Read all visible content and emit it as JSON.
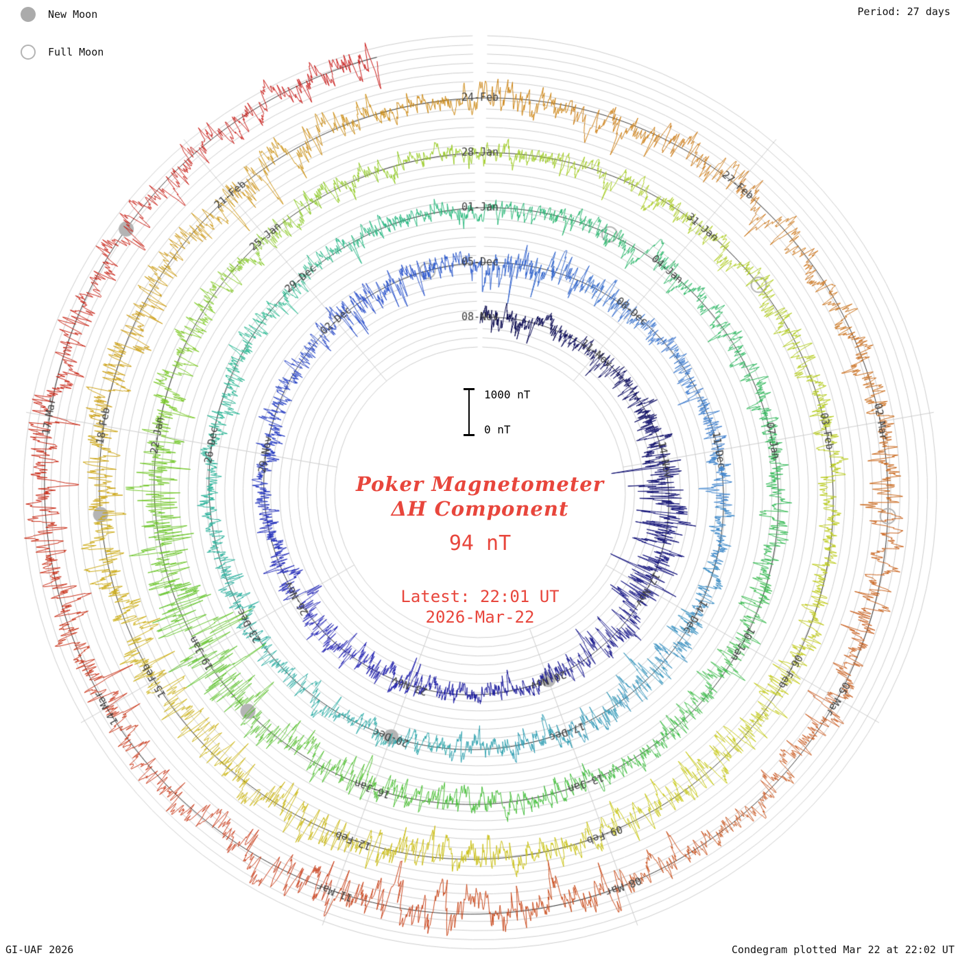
{
  "legend": {
    "new_moon_label": "New Moon",
    "full_moon_label": "Full Moon"
  },
  "header_right": "Period: 27 days",
  "footer_left": "GI-UAF 2026",
  "footer_right": "Condegram plotted Mar 22 at 22:02 UT",
  "scale_bar": {
    "top": "1000 nT",
    "bottom": "0 nT"
  },
  "center_text": {
    "title_line1": "Poker Magnetometer",
    "title_line2": "ΔH Component",
    "current_value": "94 nT",
    "latest_label": "Latest: 22:01 UT",
    "latest_date": "2026-Mar-22"
  },
  "chart_data": {
    "type": "line",
    "variant": "condegram (polar spiral magnetogram, one revolution = 27 days, time runs clockwise from top)",
    "title": "Poker Magnetometer ΔH Component",
    "station": "Poker Magnetometer",
    "component": "ΔH",
    "period_days": 27,
    "days_total": 134,
    "start_label": "08-Nov",
    "end_label": "2026-Mar-22",
    "latest_value_nT": 94,
    "latest_time": "22:01 UT",
    "scale": {
      "bottom_nT": 0,
      "top_nT": 1000
    },
    "tick_labels": [
      {
        "d": 0,
        "t": "08-Nov"
      },
      {
        "d": 3,
        "t": "11-Nov"
      },
      {
        "d": 6,
        "t": "14-Nov"
      },
      {
        "d": 9,
        "t": "17-Nov"
      },
      {
        "d": 12,
        "t": "20-Nov"
      },
      {
        "d": 15,
        "t": "23-Nov"
      },
      {
        "d": 18,
        "t": "26-Nov"
      },
      {
        "d": 21,
        "t": "29-Nov"
      },
      {
        "d": 24,
        "t": "02-Dec"
      },
      {
        "d": 27,
        "t": "05-Dec"
      },
      {
        "d": 30,
        "t": "08-Dec"
      },
      {
        "d": 33,
        "t": "11-Dec"
      },
      {
        "d": 36,
        "t": "14-Dec"
      },
      {
        "d": 39,
        "t": "17-Dec"
      },
      {
        "d": 42,
        "t": "20-Dec"
      },
      {
        "d": 45,
        "t": "23-Dec"
      },
      {
        "d": 48,
        "t": "26-Dec"
      },
      {
        "d": 51,
        "t": "29-Dec"
      },
      {
        "d": 54,
        "t": "01-Jan"
      },
      {
        "d": 57,
        "t": "04-Jan"
      },
      {
        "d": 60,
        "t": "07-Jan"
      },
      {
        "d": 63,
        "t": "10-Jan"
      },
      {
        "d": 66,
        "t": "13-Jan"
      },
      {
        "d": 69,
        "t": "16-Jan"
      },
      {
        "d": 72,
        "t": "19-Jan"
      },
      {
        "d": 75,
        "t": "22-Jan"
      },
      {
        "d": 78,
        "t": "25-Jan"
      },
      {
        "d": 81,
        "t": "28-Jan"
      },
      {
        "d": 84,
        "t": "31-Jan"
      },
      {
        "d": 87,
        "t": "03-Feb"
      },
      {
        "d": 90,
        "t": "06-Feb"
      },
      {
        "d": 93,
        "t": "09-Feb"
      },
      {
        "d": 96,
        "t": "12-Feb"
      },
      {
        "d": 99,
        "t": "15-Feb"
      },
      {
        "d": 102,
        "t": "18-Feb"
      },
      {
        "d": 105,
        "t": "21-Feb"
      },
      {
        "d": 108,
        "t": "24-Feb"
      },
      {
        "d": 111,
        "t": "27-Feb"
      },
      {
        "d": 114,
        "t": "02-Mar"
      },
      {
        "d": 117,
        "t": "05-Mar"
      },
      {
        "d": 120,
        "t": "08-Mar"
      },
      {
        "d": 123,
        "t": "11-Mar"
      },
      {
        "d": 126,
        "t": "14-Mar"
      },
      {
        "d": 129,
        "t": "17-Mar"
      }
    ],
    "moon_markers": {
      "new_moon_days": [
        12,
        42,
        71,
        101,
        131
      ],
      "full_moon_days": [
        26,
        56,
        85,
        115
      ]
    },
    "daily_activity": [
      0.35,
      0.3,
      0.25,
      0.3,
      0.35,
      0.5,
      0.7,
      0.75,
      0.7,
      0.6,
      0.45,
      0.3,
      0.25,
      0.3,
      0.35,
      0.4,
      0.45,
      0.4,
      0.35,
      0.3,
      0.3,
      0.35,
      0.3,
      0.3,
      0.5,
      0.45,
      0.35,
      0.55,
      0.5,
      0.4,
      0.35,
      0.3,
      0.3,
      0.35,
      0.3,
      0.3,
      0.45,
      0.5,
      0.45,
      0.4,
      0.35,
      0.3,
      0.3,
      0.35,
      0.3,
      0.35,
      0.3,
      0.3,
      0.3,
      0.35,
      0.3,
      0.3,
      0.35,
      0.3,
      0.3,
      0.35,
      0.4,
      0.35,
      0.3,
      0.35,
      0.3,
      0.35,
      0.4,
      0.45,
      0.4,
      0.35,
      0.4,
      0.45,
      0.4,
      0.5,
      0.6,
      1.0,
      1.0,
      0.9,
      0.7,
      0.5,
      0.4,
      0.35,
      0.4,
      0.35,
      0.3,
      0.35,
      0.3,
      0.35,
      0.35,
      0.4,
      0.35,
      0.35,
      0.3,
      0.4,
      0.5,
      0.55,
      0.5,
      0.45,
      0.55,
      0.6,
      0.65,
      0.6,
      0.55,
      0.6,
      0.55,
      0.5,
      0.55,
      0.5,
      0.5,
      0.55,
      0.5,
      0.45,
      0.5,
      0.45,
      0.5,
      0.45,
      0.4,
      0.45,
      0.45,
      0.4,
      0.45,
      0.4,
      0.4,
      0.45,
      0.6,
      0.7,
      0.65,
      0.6,
      0.5,
      0.45,
      0.55,
      0.6,
      0.55,
      0.5,
      0.45,
      0.4,
      0.45,
      0.5,
      0.55
    ],
    "color_stops": [
      "#000046",
      "#10107a",
      "#2020b4",
      "#2a52cc",
      "#3c82cc",
      "#30aaaa",
      "#28b890",
      "#2eb860",
      "#46be3c",
      "#78c828",
      "#aacc1e",
      "#c8c814",
      "#ccaa14",
      "#cc8214",
      "#c85a1e",
      "#c83214",
      "#c81414"
    ],
    "colors": {
      "accent_red": "#e8463c",
      "grid": "#cccccc",
      "baseline": "#000000",
      "moon_gray": "#b4b4b4",
      "tick_label": "#3c3c3c"
    },
    "layout": {
      "grid": "fine concentric rings with seam gap at 12 o'clock, radial lines every 40°",
      "legend_position": "top-left"
    }
  }
}
